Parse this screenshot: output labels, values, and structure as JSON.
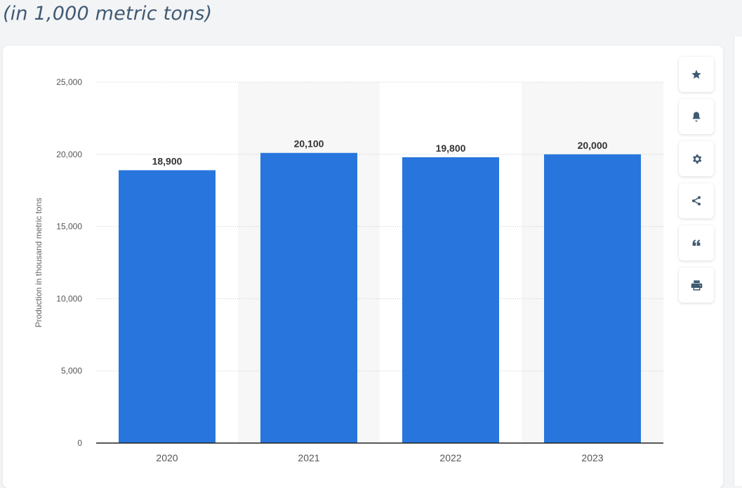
{
  "header": {
    "subtitle": "(in 1,000 metric tons)"
  },
  "toolbar": {
    "buttons": [
      {
        "name": "favorite-button",
        "icon": "star-icon"
      },
      {
        "name": "notification-button",
        "icon": "bell-icon"
      },
      {
        "name": "settings-button",
        "icon": "gear-icon"
      },
      {
        "name": "share-button",
        "icon": "share-icon"
      },
      {
        "name": "cite-button",
        "icon": "quote-icon"
      },
      {
        "name": "print-button",
        "icon": "printer-icon"
      }
    ]
  },
  "colors": {
    "bar": "#2876dd",
    "band": "#f7f7f7",
    "grid": "#c8c8c8",
    "axis_text": "#555555",
    "label_text": "#333333",
    "icon": "#3f5a73"
  },
  "chart_data": {
    "type": "bar",
    "categories": [
      "2020",
      "2021",
      "2022",
      "2023"
    ],
    "values": [
      18900,
      20100,
      19800,
      20000
    ],
    "value_labels": [
      "18,900",
      "20,100",
      "19,800",
      "20,000"
    ],
    "yticks": [
      0,
      5000,
      10000,
      15000,
      20000,
      25000
    ],
    "ytick_labels": [
      "0",
      "5,000",
      "10,000",
      "15,000",
      "20,000",
      "25,000"
    ],
    "ylim": [
      0,
      25000
    ],
    "ylabel": "Production in thousand metric tons",
    "xlabel": "",
    "grid": true,
    "alternating_bands": true
  }
}
